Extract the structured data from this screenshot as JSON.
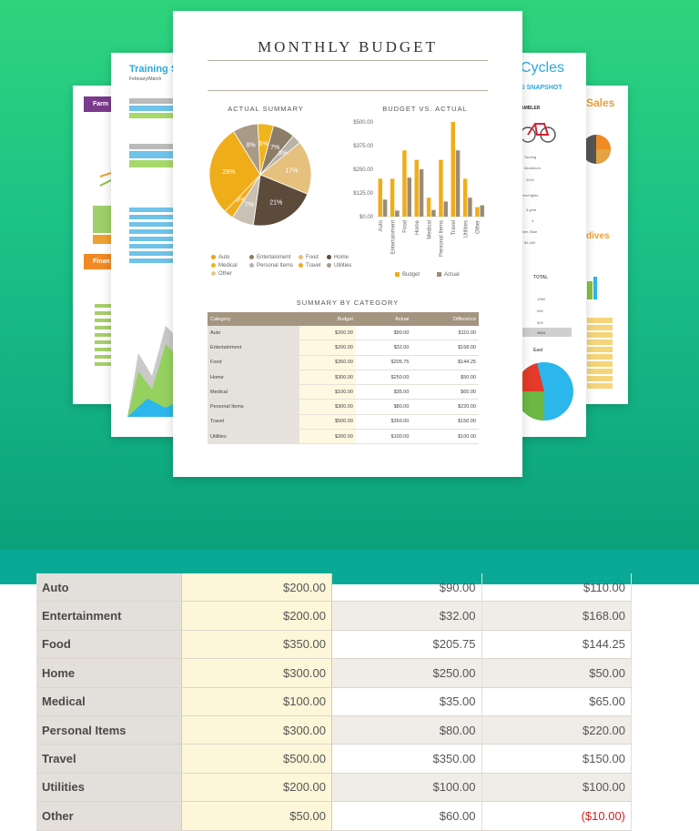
{
  "main_doc": {
    "title": "MONTHLY BUDGET",
    "pie_title": "ACTUAL SUMMARY",
    "bar_title": "BUDGET VS. ACTUAL",
    "table_title": "SUMMARY BY CATEGORY",
    "pie_labels": [
      "5%",
      "7%",
      "3%",
      "17%",
      "21%",
      "7%",
      "3%",
      "29%",
      "8%"
    ],
    "pie_legend": [
      {
        "label": "Auto",
        "color": "#e8a317"
      },
      {
        "label": "Entertainment",
        "color": "#8c7d68"
      },
      {
        "label": "Food",
        "color": "#e6c07d"
      },
      {
        "label": "Home",
        "color": "#5c4a3a"
      },
      {
        "label": "Medical",
        "color": "#f0b41c"
      },
      {
        "label": "Personal Items",
        "color": "#b9b3a8"
      },
      {
        "label": "Travel",
        "color": "#f2ab1f"
      },
      {
        "label": "Utilities",
        "color": "#a89a86"
      },
      {
        "label": "Other",
        "color": "#e8c888"
      }
    ],
    "bar_yticks": [
      "$500.00",
      "$375.00",
      "$250.00",
      "$125.00",
      "$0.00"
    ],
    "bar_legend": [
      {
        "label": "Budget",
        "color": "#f0ad1a"
      },
      {
        "label": "Actual",
        "color": "#9a8c78"
      }
    ],
    "table_headers": [
      "Category",
      "Budget",
      "Actual",
      "Difference"
    ],
    "table_rows": [
      [
        "Auto",
        "$200.00",
        "$90.00",
        "$110.00"
      ],
      [
        "Entertainment",
        "$200.00",
        "$32.00",
        "$168.00"
      ],
      [
        "Food",
        "$350.00",
        "$205.75",
        "$144.25"
      ],
      [
        "Home",
        "$300.00",
        "$250.00",
        "$50.00"
      ],
      [
        "Medical",
        "$100.00",
        "$35.00",
        "$65.00"
      ],
      [
        "Personal Items",
        "$300.00",
        "$80.00",
        "$220.00"
      ],
      [
        "Travel",
        "$500.00",
        "$350.00",
        "$150.00"
      ],
      [
        "Utilities",
        "$200.00",
        "$100.00",
        "$100.00"
      ]
    ]
  },
  "side_docs": {
    "training_title": "Training S",
    "training_subtitle": "February/March",
    "farm_ribbon": "Farm",
    "finance_ribbon": "Finan",
    "cycles_title": "Cycles",
    "cycles_subtitle": "S SNAPSHOT",
    "cycles_rows": [
      "AMBLER",
      "Touring",
      "Aluminum",
      "2010",
      "o-powered lights",
      "3-year",
      "4",
      "k, Silver, Blue",
      "$1,450"
    ],
    "cycles_total_label": "TOTAL",
    "cycles_totals": [
      "1069",
      "946",
      "509",
      "2524"
    ],
    "cycles_east": "East",
    "sales_title": "Sales",
    "dives_title": "dives"
  },
  "chart_data": {
    "type": "bar",
    "title": "BUDGET VS. ACTUAL",
    "categories": [
      "Auto",
      "Entertainment",
      "Food",
      "Home",
      "Medical",
      "Personal Items",
      "Travel",
      "Utilities",
      "Other"
    ],
    "series": [
      {
        "name": "Budget",
        "values": [
          200,
          200,
          350,
          300,
          100,
          300,
          500,
          200,
          50
        ]
      },
      {
        "name": "Actual",
        "values": [
          90,
          32,
          205.75,
          250,
          35,
          80,
          350,
          100,
          60
        ]
      }
    ],
    "ylim": [
      0,
      500
    ]
  },
  "zoomed_table": {
    "rows": [
      {
        "category": "Auto",
        "budget": "$200.00",
        "actual": "$90.00",
        "difference": "$110.00"
      },
      {
        "category": "Entertainment",
        "budget": "$200.00",
        "actual": "$32.00",
        "difference": "$168.00"
      },
      {
        "category": "Food",
        "budget": "$350.00",
        "actual": "$205.75",
        "difference": "$144.25"
      },
      {
        "category": "Home",
        "budget": "$300.00",
        "actual": "$250.00",
        "difference": "$50.00"
      },
      {
        "category": "Medical",
        "budget": "$100.00",
        "actual": "$35.00",
        "difference": "$65.00"
      },
      {
        "category": "Personal Items",
        "budget": "$300.00",
        "actual": "$80.00",
        "difference": "$220.00"
      },
      {
        "category": "Travel",
        "budget": "$500.00",
        "actual": "$350.00",
        "difference": "$150.00"
      },
      {
        "category": "Utilities",
        "budget": "$200.00",
        "actual": "$100.00",
        "difference": "$100.00"
      },
      {
        "category": "Other",
        "budget": "$50.00",
        "actual": "$60.00",
        "difference": "($10.00)"
      }
    ]
  }
}
